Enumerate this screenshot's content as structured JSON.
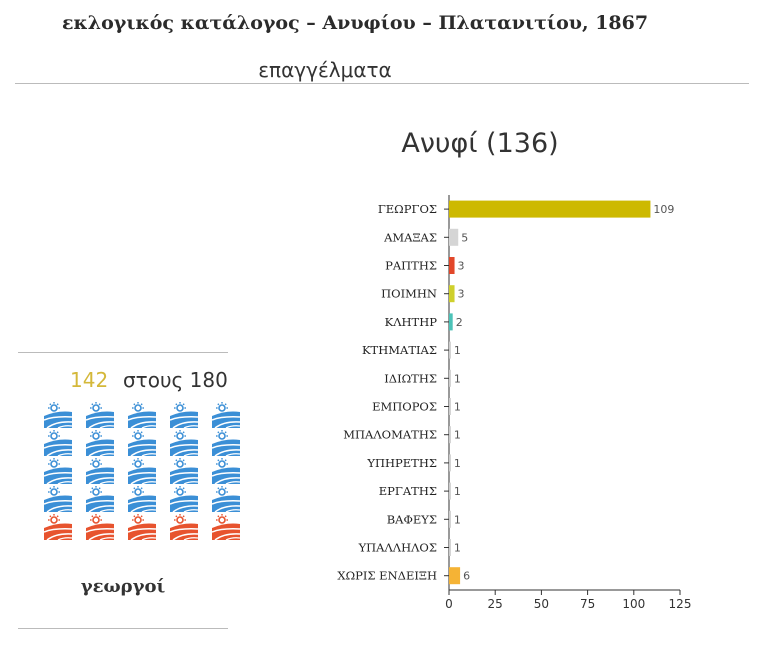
{
  "header": {
    "title": "εκλογικός κατάλογος – Ανυφίου – Πλατανιτίου, 1867",
    "subtitle": "επαγγέλματα"
  },
  "sidebar": {
    "highlight_count": "142",
    "total_label": "στους 180",
    "category_label": "γεωργοί",
    "icon_grid": {
      "columns": 5,
      "rows": 5,
      "highlighted": 20,
      "icon": "farm-sun-icon",
      "highlight_color": "#3b8fd6",
      "rest_color": "#e7532e"
    }
  },
  "chart_data": {
    "type": "bar",
    "orientation": "horizontal",
    "title": "Ανυφί  (136)",
    "categories": [
      "ΓΕΩΡΓΟΣ",
      "ΑΜΑΞΑΣ",
      "ΡΑΠΤΗΣ",
      "ΠΟΙΜΗΝ",
      "ΚΛΗΤΗΡ",
      "ΚΤΗΜΑΤΙΑΣ",
      "ΙΔΙΩΤΗΣ",
      "ΕΜΠΟΡΟΣ",
      "ΜΠΑΛΟΜΑΤΗΣ",
      "ΥΠΗΡΕΤΗΣ",
      "ΕΡΓΑΤΗΣ",
      "ΒΑΦΕΥΣ",
      "ΥΠΑΛΛΗΛΟΣ",
      "ΧΩΡΙΣ ΕΝΔΕΙΞΗ"
    ],
    "values": [
      109,
      5,
      3,
      3,
      2,
      1,
      1,
      1,
      1,
      1,
      1,
      1,
      1,
      6
    ],
    "value_labels": [
      "109",
      "5",
      "3",
      "3",
      "2",
      "1",
      "1",
      "1",
      "1",
      "1",
      "1",
      "1",
      "1",
      "6"
    ],
    "colors": [
      "#cdb900",
      "#d5d5d5",
      "#e2472a",
      "#cfd02c",
      "#4cc3b8",
      "#cccccc",
      "#cccccc",
      "#cccccc",
      "#cccccc",
      "#cccccc",
      "#cccccc",
      "#cccccc",
      "#cccccc",
      "#f5b335"
    ],
    "xlim": [
      0,
      125
    ],
    "xticks": [
      "0",
      "25",
      "50",
      "75",
      "100",
      "125"
    ],
    "grid": false
  }
}
